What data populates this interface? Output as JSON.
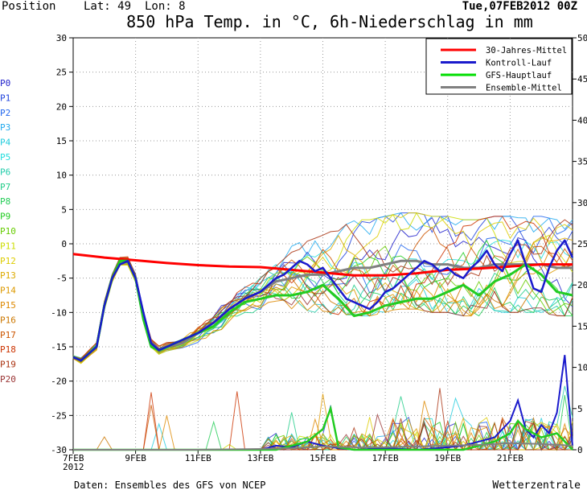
{
  "header": {
    "position": "Position",
    "lat": "Lat: 49",
    "lon": "Lon: 8",
    "run": "Tue,07FEB2012 00Z"
  },
  "footer": {
    "source": "Daten: Ensembles des GFS von NCEP",
    "brand": "Wetterzentrale"
  },
  "chart_data": {
    "type": "line",
    "title": "850 hPa Temp. in °C, 6h-Niederschlag in mm",
    "y_left": {
      "range": [
        -30,
        30
      ],
      "ticks": [
        30,
        25,
        20,
        15,
        10,
        5,
        0,
        -5,
        -10,
        -15,
        -20,
        -25,
        -30
      ]
    },
    "y_right": {
      "range": [
        0,
        50
      ],
      "ticks": [
        50,
        45,
        40,
        35,
        30,
        25,
        20,
        15,
        10,
        5,
        0
      ]
    },
    "x_range_days": [
      7,
      23
    ],
    "x_ticks": [
      {
        "day": 7,
        "label": "7FEB",
        "label2": "2012"
      },
      {
        "day": 9,
        "label": "9FEB"
      },
      {
        "day": 11,
        "label": "11FEB"
      },
      {
        "day": 13,
        "label": "13FEB"
      },
      {
        "day": 15,
        "label": "15FEB"
      },
      {
        "day": 17,
        "label": "17FEB"
      },
      {
        "day": 19,
        "label": "19FEB"
      },
      {
        "day": 21,
        "label": "21FEB"
      }
    ],
    "grid": true,
    "legend_position": "top-right",
    "legend": [
      {
        "name": "30-Jahres-Mittel",
        "color": "#ff0000"
      },
      {
        "name": "Kontroll-Lauf",
        "color": "#1a1acc"
      },
      {
        "name": "GFS-Hauptlauf",
        "color": "#00dd00"
      },
      {
        "name": "Ensemble-Mittel",
        "color": "#808080"
      }
    ],
    "member_labels": [
      {
        "name": "P0",
        "color": "#2222cc"
      },
      {
        "name": "P1",
        "color": "#2244dd"
      },
      {
        "name": "P2",
        "color": "#2266ee"
      },
      {
        "name": "P3",
        "color": "#22aaee"
      },
      {
        "name": "P4",
        "color": "#22ccdd"
      },
      {
        "name": "P5",
        "color": "#22dddd"
      },
      {
        "name": "P6",
        "color": "#22ccaa"
      },
      {
        "name": "P7",
        "color": "#22cc88"
      },
      {
        "name": "P8",
        "color": "#22cc55"
      },
      {
        "name": "P9",
        "color": "#22cc22"
      },
      {
        "name": "P10",
        "color": "#66cc00"
      },
      {
        "name": "P11",
        "color": "#ccdd00"
      },
      {
        "name": "P12",
        "color": "#ddcc00"
      },
      {
        "name": "P13",
        "color": "#ddaa00"
      },
      {
        "name": "P14",
        "color": "#dd9900"
      },
      {
        "name": "P15",
        "color": "#dd8800"
      },
      {
        "name": "P16",
        "color": "#cc7700"
      },
      {
        "name": "P17",
        "color": "#cc5500"
      },
      {
        "name": "P18",
        "color": "#cc3300"
      },
      {
        "name": "P19",
        "color": "#aa3311"
      },
      {
        "name": "P20",
        "color": "#993333"
      }
    ],
    "series": [
      {
        "name": "30-Jahres-Mittel",
        "color": "#ff0000",
        "width": 3,
        "x": [
          7,
          8,
          9,
          10,
          11,
          12,
          13,
          14,
          15,
          16,
          17,
          18,
          19,
          20,
          21,
          22,
          23
        ],
        "y": [
          -1.5,
          -2.0,
          -2.4,
          -2.8,
          -3.1,
          -3.3,
          -3.4,
          -3.8,
          -4.2,
          -4.6,
          -4.6,
          -4.3,
          -3.8,
          -3.6,
          -3.3,
          -3.0,
          -3.0
        ]
      },
      {
        "name": "Kontroll-Lauf",
        "color": "#1a1acc",
        "width": 2.5,
        "x": [
          7,
          7.25,
          7.5,
          7.75,
          8,
          8.25,
          8.5,
          8.75,
          9,
          9.25,
          9.5,
          9.75,
          10,
          10.5,
          11,
          11.5,
          12,
          12.5,
          13,
          13.25,
          13.5,
          13.75,
          14,
          14.25,
          14.5,
          14.75,
          15,
          15.25,
          15.5,
          15.75,
          16,
          16.25,
          16.5,
          16.75,
          17,
          17.25,
          17.5,
          17.75,
          18,
          18.25,
          18.5,
          18.75,
          19,
          19.25,
          19.5,
          19.75,
          20,
          20.25,
          20.5,
          20.75,
          21,
          21.25,
          21.5,
          21.75,
          22,
          22.25,
          22.5,
          22.75,
          23
        ],
        "y": [
          -16.5,
          -17,
          -16,
          -15,
          -9,
          -5,
          -3,
          -2.5,
          -5,
          -10,
          -14.5,
          -15.5,
          -15,
          -14,
          -13,
          -11.5,
          -9.5,
          -8,
          -7,
          -6,
          -5,
          -4.5,
          -3.5,
          -2.5,
          -3,
          -4,
          -3.5,
          -5,
          -6.5,
          -8,
          -8.5,
          -9,
          -9.5,
          -8.5,
          -7,
          -6.5,
          -5.5,
          -4.5,
          -3.5,
          -2.5,
          -3,
          -4,
          -3.5,
          -4.5,
          -5,
          -3.5,
          -2.5,
          -1,
          -3,
          -4,
          -1.5,
          0.5,
          -3,
          -6.5,
          -7,
          -3.5,
          -1,
          0.5,
          -2
        ]
      },
      {
        "name": "GFS-Hauptlauf",
        "color": "#22cc22",
        "width": 3,
        "x": [
          7,
          7.25,
          7.5,
          7.75,
          8,
          8.25,
          8.5,
          8.75,
          9,
          9.25,
          9.5,
          9.75,
          10,
          10.5,
          11,
          11.5,
          12,
          12.5,
          13,
          13.5,
          14,
          14.5,
          15,
          15.5,
          16,
          16.5,
          17,
          17.5,
          18,
          18.5,
          19,
          19.5,
          20,
          20.5,
          21,
          21.5,
          22,
          22.5,
          23
        ],
        "y": [
          -16.5,
          -17,
          -16,
          -15,
          -9,
          -5,
          -2.5,
          -2.5,
          -5,
          -11,
          -15,
          -15.5,
          -15,
          -14,
          -13,
          -12,
          -10,
          -8.5,
          -8,
          -7.5,
          -7.5,
          -7,
          -6,
          -8,
          -10.5,
          -10,
          -9,
          -8.5,
          -8,
          -8,
          -7,
          -6,
          -7.5,
          -5.5,
          -4.5,
          -3,
          -4.5,
          -7,
          -7.5
        ]
      },
      {
        "name": "Ensemble-Mittel",
        "color": "#808080",
        "width": 3,
        "x": [
          7,
          7.25,
          7.5,
          7.75,
          8,
          8.25,
          8.5,
          8.75,
          9,
          9.25,
          9.5,
          9.75,
          10,
          10.5,
          11,
          11.5,
          12,
          12.5,
          13,
          13.5,
          14,
          14.5,
          15,
          15.5,
          16,
          16.5,
          17,
          17.5,
          18,
          18.5,
          19,
          19.5,
          20,
          20.5,
          21,
          21.5,
          22,
          22.5,
          23
        ],
        "y": [
          -16.5,
          -17,
          -16,
          -15,
          -9,
          -5,
          -2.5,
          -2.5,
          -5,
          -10.5,
          -14.5,
          -15.5,
          -15,
          -14.5,
          -13,
          -11.5,
          -9.5,
          -8,
          -7,
          -5.5,
          -5,
          -4.5,
          -4.5,
          -4,
          -3.5,
          -3.5,
          -3,
          -2.5,
          -2.5,
          -3,
          -3,
          -3.5,
          -3.5,
          -3,
          -3,
          -3,
          -3,
          -3.5,
          -3.5
        ]
      }
    ],
    "precip_series": [
      {
        "name": "Kontroll-Lauf",
        "color": "#1a1acc",
        "width": 2,
        "x": [
          7,
          8,
          9,
          10,
          11,
          12,
          13,
          13.5,
          14,
          14.5,
          15,
          15.5,
          16,
          17,
          18,
          19,
          19.5,
          20,
          20.5,
          21,
          21.25,
          21.5,
          21.75,
          22,
          22.25,
          22.5,
          22.75,
          23
        ],
        "y": [
          0,
          0,
          0,
          0,
          0,
          0,
          0,
          0.5,
          0.3,
          1,
          0.5,
          0.2,
          0,
          0.2,
          0,
          0.3,
          0.5,
          1,
          1.5,
          3.5,
          6,
          2.5,
          1.5,
          3,
          2,
          4.5,
          11.5,
          0.5
        ]
      },
      {
        "name": "GFS-Hauptlauf",
        "color": "#22cc22",
        "width": 2.5,
        "x": [
          7,
          8,
          9,
          10,
          11,
          12,
          13,
          13.5,
          14,
          14.5,
          15,
          15.25,
          15.5,
          16,
          17,
          18,
          19,
          19.5,
          20,
          20.5,
          21,
          21.25,
          21.5,
          22,
          22.5,
          23
        ],
        "y": [
          0,
          0,
          0,
          0,
          0,
          0,
          0,
          0,
          0.5,
          1,
          2.5,
          5,
          0.3,
          0,
          0,
          0,
          0,
          0,
          0.5,
          1,
          2,
          3.5,
          2.5,
          1.5,
          2,
          0
        ]
      },
      {
        "name": "Ensemble-Mittel",
        "color": "#808080",
        "width": 2,
        "x": [
          7,
          9,
          11,
          13,
          14,
          15,
          16,
          17,
          18,
          19,
          20,
          21,
          22,
          23
        ],
        "y": [
          0,
          0,
          0,
          0.1,
          0.2,
          0.4,
          0.3,
          0.3,
          0.4,
          0.5,
          0.6,
          0.8,
          0.7,
          0.5
        ]
      }
    ]
  }
}
